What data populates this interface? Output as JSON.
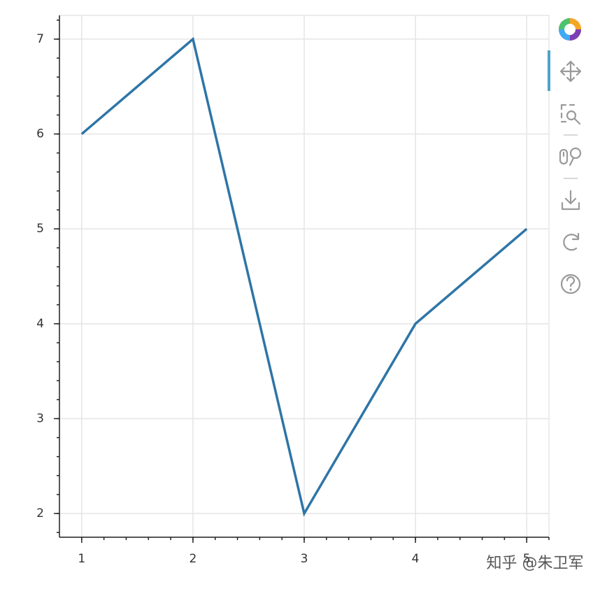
{
  "chart_data": {
    "type": "line",
    "x": [
      1,
      2,
      3,
      4,
      5
    ],
    "series": [
      {
        "color": "#2e75a6",
        "values": [
          6,
          7,
          2,
          4,
          5
        ]
      }
    ],
    "xlim": [
      0.8,
      5.2
    ],
    "xticks": [
      1,
      2,
      3,
      4,
      5
    ],
    "ylim": [
      1.75,
      7.25
    ],
    "yticks": [
      2,
      3,
      4,
      5,
      6,
      7
    ],
    "grid": true
  },
  "watermark": "知乎 @朱卫军"
}
